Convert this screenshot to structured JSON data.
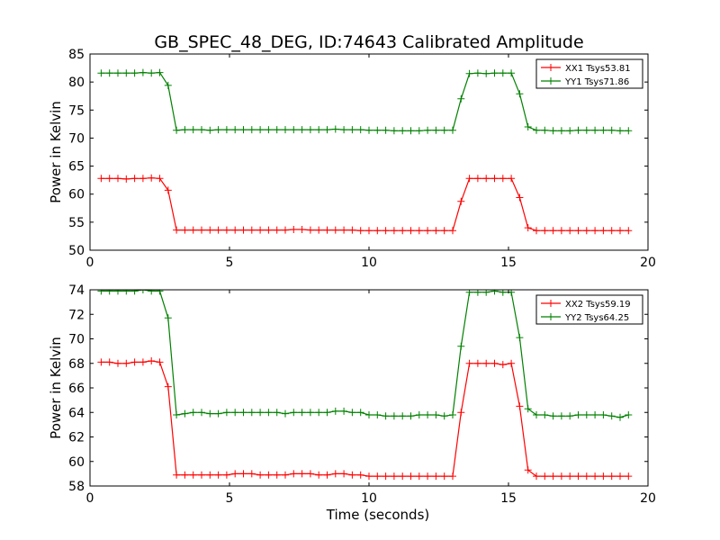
{
  "figure_title": "GB_SPEC_48_DEG, ID:74643 Calibrated Amplitude",
  "chart_data": [
    {
      "type": "line",
      "title": "GB_SPEC_48_DEG, ID:74643 Calibrated Amplitude",
      "xlabel": "",
      "ylabel": "Power in Kelvin",
      "xlim": [
        0,
        20
      ],
      "ylim": [
        50,
        85
      ],
      "xticks": [
        0,
        5,
        10,
        15,
        20
      ],
      "yticks": [
        50,
        55,
        60,
        65,
        70,
        75,
        80,
        85
      ],
      "legend_position": "top-right",
      "x": [
        0.4,
        0.7,
        1.0,
        1.3,
        1.6,
        1.9,
        2.2,
        2.5,
        2.8,
        3.1,
        3.4,
        3.7,
        4.0,
        4.3,
        4.6,
        4.9,
        5.2,
        5.5,
        5.8,
        6.1,
        6.4,
        6.7,
        7.0,
        7.3,
        7.6,
        7.9,
        8.2,
        8.5,
        8.8,
        9.1,
        9.4,
        9.7,
        10.0,
        10.3,
        10.6,
        10.9,
        11.2,
        11.5,
        11.8,
        12.1,
        12.4,
        12.7,
        13.0,
        13.3,
        13.6,
        13.9,
        14.2,
        14.5,
        14.8,
        15.1,
        15.4,
        15.7,
        16.0,
        16.3,
        16.6,
        16.9,
        17.2,
        17.5,
        17.8,
        18.1,
        18.4,
        18.7,
        19.0,
        19.3
      ],
      "series": [
        {
          "name": "XX1 Tsys53.81",
          "color": "#ff0000",
          "values": [
            62.8,
            62.8,
            62.8,
            62.7,
            62.8,
            62.8,
            62.9,
            62.8,
            60.7,
            53.6,
            53.6,
            53.6,
            53.6,
            53.6,
            53.6,
            53.6,
            53.6,
            53.6,
            53.6,
            53.6,
            53.6,
            53.6,
            53.6,
            53.7,
            53.7,
            53.6,
            53.6,
            53.6,
            53.6,
            53.6,
            53.6,
            53.5,
            53.5,
            53.5,
            53.5,
            53.5,
            53.5,
            53.5,
            53.5,
            53.5,
            53.5,
            53.5,
            53.5,
            58.7,
            62.8,
            62.8,
            62.8,
            62.8,
            62.8,
            62.8,
            59.4,
            54.0,
            53.5,
            53.5,
            53.5,
            53.5,
            53.5,
            53.5,
            53.5,
            53.5,
            53.5,
            53.5,
            53.5,
            53.5
          ]
        },
        {
          "name": "YY1 Tsys71.86",
          "color": "#008000",
          "values": [
            81.6,
            81.6,
            81.6,
            81.6,
            81.6,
            81.7,
            81.6,
            81.7,
            79.4,
            71.4,
            71.5,
            71.5,
            71.5,
            71.4,
            71.5,
            71.5,
            71.5,
            71.5,
            71.5,
            71.5,
            71.5,
            71.5,
            71.5,
            71.5,
            71.5,
            71.5,
            71.5,
            71.5,
            71.6,
            71.5,
            71.5,
            71.5,
            71.4,
            71.4,
            71.4,
            71.3,
            71.3,
            71.3,
            71.3,
            71.4,
            71.4,
            71.4,
            71.4,
            77.0,
            81.5,
            81.6,
            81.5,
            81.6,
            81.6,
            81.6,
            77.9,
            72.0,
            71.4,
            71.4,
            71.3,
            71.3,
            71.3,
            71.4,
            71.4,
            71.4,
            71.4,
            71.4,
            71.3,
            71.3
          ]
        }
      ]
    },
    {
      "type": "line",
      "title": "",
      "xlabel": "Time (seconds)",
      "ylabel": "Power in Kelvin",
      "xlim": [
        0,
        20
      ],
      "ylim": [
        58,
        74
      ],
      "xticks": [
        0,
        5,
        10,
        15,
        20
      ],
      "yticks": [
        58,
        60,
        62,
        64,
        66,
        68,
        70,
        72,
        74
      ],
      "legend_position": "top-right",
      "x": [
        0.4,
        0.7,
        1.0,
        1.3,
        1.6,
        1.9,
        2.2,
        2.5,
        2.8,
        3.1,
        3.4,
        3.7,
        4.0,
        4.3,
        4.6,
        4.9,
        5.2,
        5.5,
        5.8,
        6.1,
        6.4,
        6.7,
        7.0,
        7.3,
        7.6,
        7.9,
        8.2,
        8.5,
        8.8,
        9.1,
        9.4,
        9.7,
        10.0,
        10.3,
        10.6,
        10.9,
        11.2,
        11.5,
        11.8,
        12.1,
        12.4,
        12.7,
        13.0,
        13.3,
        13.6,
        13.9,
        14.2,
        14.5,
        14.8,
        15.1,
        15.4,
        15.7,
        16.0,
        16.3,
        16.6,
        16.9,
        17.2,
        17.5,
        17.8,
        18.1,
        18.4,
        18.7,
        19.0,
        19.3
      ],
      "series": [
        {
          "name": "XX2 Tsys59.19",
          "color": "#ff0000",
          "values": [
            68.1,
            68.1,
            68.0,
            68.0,
            68.1,
            68.1,
            68.2,
            68.1,
            66.1,
            58.9,
            58.9,
            58.9,
            58.9,
            58.9,
            58.9,
            58.9,
            59.0,
            59.0,
            59.0,
            58.9,
            58.9,
            58.9,
            58.9,
            59.0,
            59.0,
            59.0,
            58.9,
            58.9,
            59.0,
            59.0,
            58.9,
            58.9,
            58.8,
            58.8,
            58.8,
            58.8,
            58.8,
            58.8,
            58.8,
            58.8,
            58.8,
            58.8,
            58.8,
            64.0,
            68.0,
            68.0,
            68.0,
            68.0,
            67.9,
            68.0,
            64.5,
            59.3,
            58.8,
            58.8,
            58.8,
            58.8,
            58.8,
            58.8,
            58.8,
            58.8,
            58.8,
            58.8,
            58.8,
            58.8
          ]
        },
        {
          "name": "YY2 Tsys64.25",
          "color": "#008000",
          "values": [
            73.9,
            73.9,
            73.9,
            73.9,
            73.9,
            74.0,
            73.9,
            73.9,
            71.7,
            63.8,
            63.9,
            64.0,
            64.0,
            63.9,
            63.9,
            64.0,
            64.0,
            64.0,
            64.0,
            64.0,
            64.0,
            64.0,
            63.9,
            64.0,
            64.0,
            64.0,
            64.0,
            64.0,
            64.1,
            64.1,
            64.0,
            64.0,
            63.8,
            63.8,
            63.7,
            63.7,
            63.7,
            63.7,
            63.8,
            63.8,
            63.8,
            63.7,
            63.8,
            69.4,
            73.8,
            73.8,
            73.8,
            73.9,
            73.8,
            73.8,
            70.1,
            64.3,
            63.8,
            63.8,
            63.7,
            63.7,
            63.7,
            63.8,
            63.8,
            63.8,
            63.8,
            63.7,
            63.6,
            63.8
          ]
        }
      ]
    }
  ]
}
